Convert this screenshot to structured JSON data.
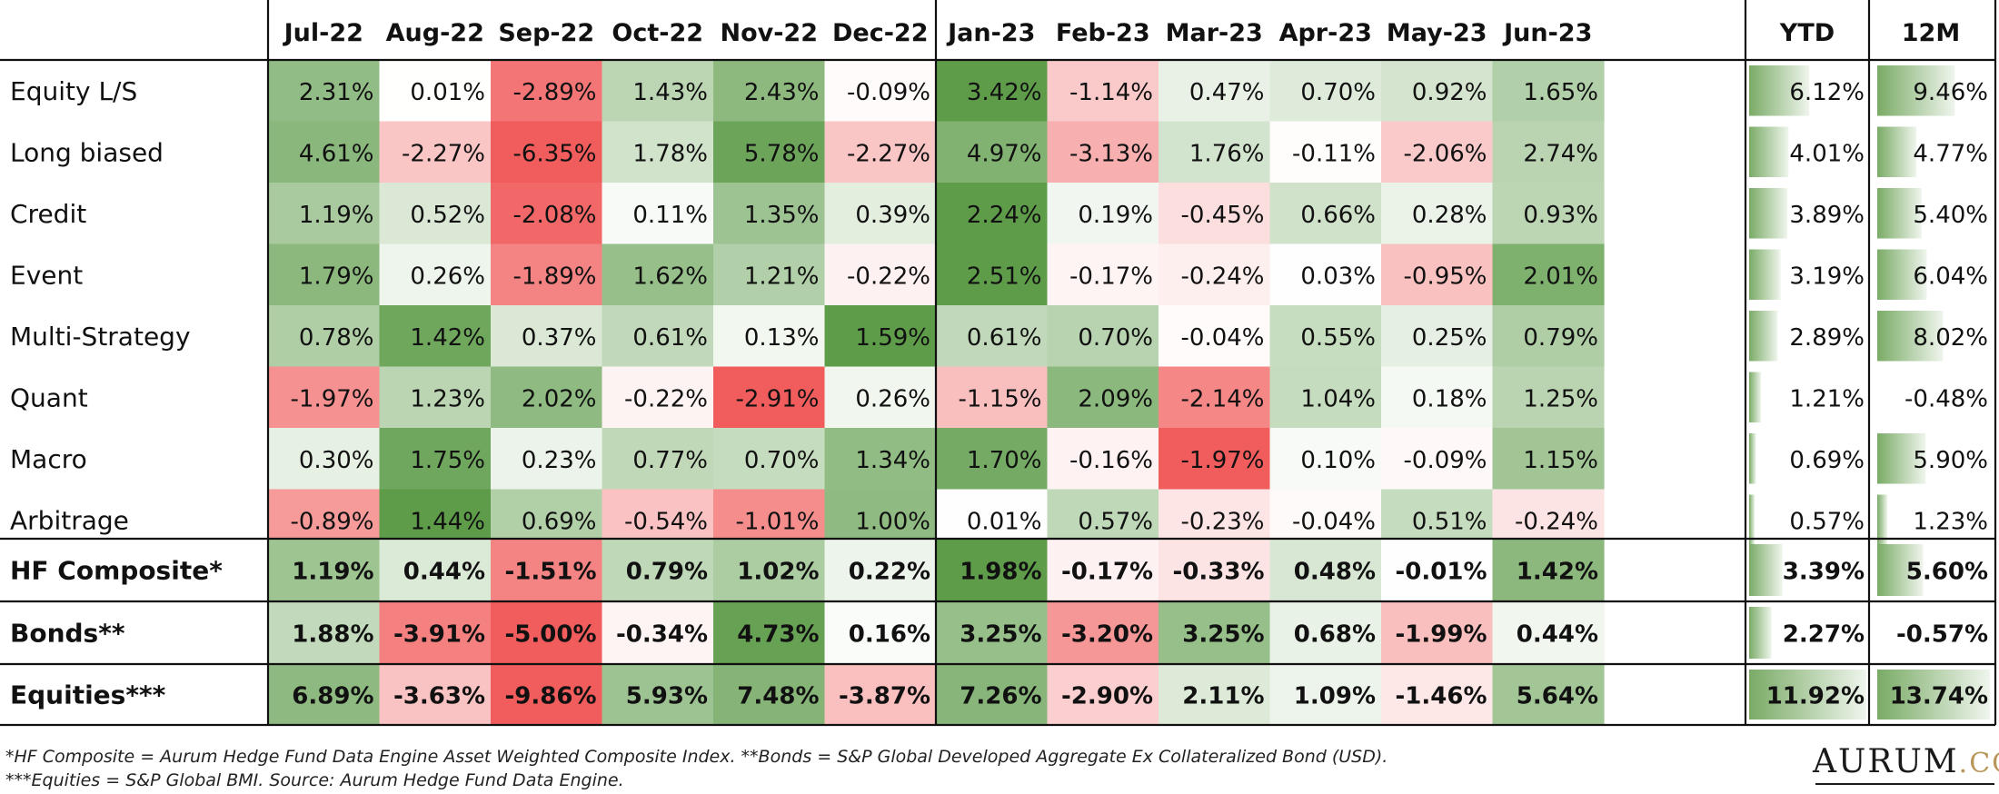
{
  "chart_data": {
    "type": "heatmap",
    "columns": [
      "Jul-22",
      "Aug-22",
      "Sep-22",
      "Oct-22",
      "Nov-22",
      "Dec-22",
      "Jan-23",
      "Feb-23",
      "Mar-23",
      "Apr-23",
      "May-23",
      "Jun-23"
    ],
    "summary_columns": [
      "YTD",
      "12M"
    ],
    "rows": [
      {
        "name": "Equity L/S",
        "bold": false,
        "values": [
          "2.31%",
          "0.01%",
          "-2.89%",
          "1.43%",
          "2.43%",
          "-0.09%",
          "3.42%",
          "-1.14%",
          "0.47%",
          "0.70%",
          "0.92%",
          "1.65%"
        ],
        "ytd": "6.12%",
        "m12": "9.46%"
      },
      {
        "name": "Long biased",
        "bold": false,
        "values": [
          "4.61%",
          "-2.27%",
          "-6.35%",
          "1.78%",
          "5.78%",
          "-2.27%",
          "4.97%",
          "-3.13%",
          "1.76%",
          "-0.11%",
          "-2.06%",
          "2.74%"
        ],
        "ytd": "4.01%",
        "m12": "4.77%"
      },
      {
        "name": "Credit",
        "bold": false,
        "values": [
          "1.19%",
          "0.52%",
          "-2.08%",
          "0.11%",
          "1.35%",
          "0.39%",
          "2.24%",
          "0.19%",
          "-0.45%",
          "0.66%",
          "0.28%",
          "0.93%"
        ],
        "ytd": "3.89%",
        "m12": "5.40%"
      },
      {
        "name": "Event",
        "bold": false,
        "values": [
          "1.79%",
          "0.26%",
          "-1.89%",
          "1.62%",
          "1.21%",
          "-0.22%",
          "2.51%",
          "-0.17%",
          "-0.24%",
          "0.03%",
          "-0.95%",
          "2.01%"
        ],
        "ytd": "3.19%",
        "m12": "6.04%"
      },
      {
        "name": "Multi-Strategy",
        "bold": false,
        "values": [
          "0.78%",
          "1.42%",
          "0.37%",
          "0.61%",
          "0.13%",
          "1.59%",
          "0.61%",
          "0.70%",
          "-0.04%",
          "0.55%",
          "0.25%",
          "0.79%"
        ],
        "ytd": "2.89%",
        "m12": "8.02%"
      },
      {
        "name": "Quant",
        "bold": false,
        "values": [
          "-1.97%",
          "1.23%",
          "2.02%",
          "-0.22%",
          "-2.91%",
          "0.26%",
          "-1.15%",
          "2.09%",
          "-2.14%",
          "1.04%",
          "0.18%",
          "1.25%"
        ],
        "ytd": "1.21%",
        "m12": "-0.48%"
      },
      {
        "name": "Macro",
        "bold": false,
        "values": [
          "0.30%",
          "1.75%",
          "0.23%",
          "0.77%",
          "0.70%",
          "1.34%",
          "1.70%",
          "-0.16%",
          "-1.97%",
          "0.10%",
          "-0.09%",
          "1.15%"
        ],
        "ytd": "0.69%",
        "m12": "5.90%"
      },
      {
        "name": "Arbitrage",
        "bold": false,
        "values": [
          "-0.89%",
          "1.44%",
          "0.69%",
          "-0.54%",
          "-1.01%",
          "1.00%",
          "0.01%",
          "0.57%",
          "-0.23%",
          "-0.04%",
          "0.51%",
          "-0.24%"
        ],
        "ytd": "0.57%",
        "m12": "1.23%"
      },
      {
        "name": "HF Composite*",
        "bold": true,
        "values": [
          "1.19%",
          "0.44%",
          "-1.51%",
          "0.79%",
          "1.02%",
          "0.22%",
          "1.98%",
          "-0.17%",
          "-0.33%",
          "0.48%",
          "-0.01%",
          "1.42%"
        ],
        "ytd": "3.39%",
        "m12": "5.60%"
      },
      {
        "name": "Bonds**",
        "bold": true,
        "values": [
          "1.88%",
          "-3.91%",
          "-5.00%",
          "-0.34%",
          "4.73%",
          "0.16%",
          "3.25%",
          "-3.20%",
          "3.25%",
          "0.68%",
          "-1.99%",
          "0.44%"
        ],
        "ytd": "2.27%",
        "m12": "-0.57%"
      },
      {
        "name": "Equities***",
        "bold": true,
        "values": [
          "6.89%",
          "-3.63%",
          "-9.86%",
          "5.93%",
          "7.48%",
          "-3.87%",
          "7.26%",
          "-2.90%",
          "2.11%",
          "1.09%",
          "-1.46%",
          "5.64%"
        ],
        "ytd": "11.92%",
        "m12": "13.74%"
      }
    ],
    "colors": {
      "positive": "#5e9c4a",
      "negative": "#f15c5c",
      "neutral": "#ffffff",
      "bar": "#7aab66"
    }
  },
  "footnotes": {
    "line1": "*HF Composite = Aurum Hedge Fund Data Engine Asset Weighted Composite Index. **Bonds = S&P Global Developed Aggregate Ex Collateralized Bond (USD).",
    "line2": "***Equities = S&P Global BMI. Source: Aurum Hedge Fund Data Engine."
  },
  "logo": {
    "brand": "AURUM",
    "tld": ".COM"
  }
}
